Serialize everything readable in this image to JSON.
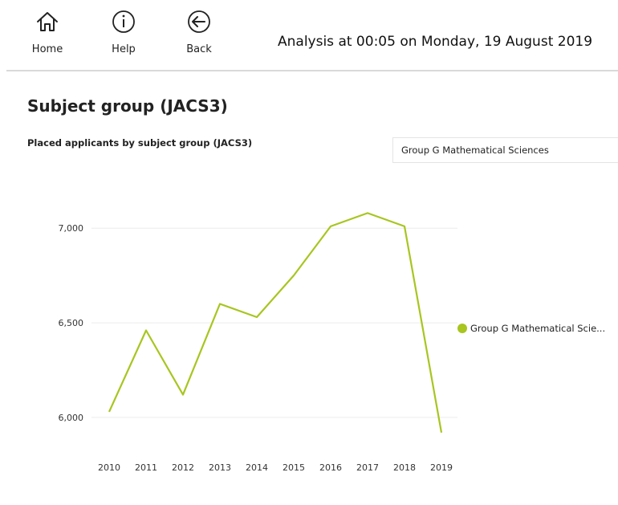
{
  "nav": {
    "home_label": "Home",
    "help_label": "Help",
    "back_label": "Back"
  },
  "analysis_text": "Analysis at 00:05 on Monday, 19 August 2019",
  "page_title": "Subject group (JACS3)",
  "dropdown": {
    "selected": "Group G Mathematical Sciences"
  },
  "legend": {
    "label": "Group G Mathematical Scie..."
  },
  "colors": {
    "series": "#a8c520",
    "grid": "#ececec",
    "divider": "#d9d9d9"
  },
  "chart_data": {
    "type": "line",
    "title": "Placed applicants by subject group (JACS3)",
    "categories": [
      "2010",
      "2011",
      "2012",
      "2013",
      "2014",
      "2015",
      "2016",
      "2017",
      "2018",
      "2019"
    ],
    "series": [
      {
        "name": "Group G Mathematical Sciences",
        "values": [
          6030,
          6460,
          6120,
          6600,
          6530,
          6750,
          7010,
          7080,
          7010,
          5920
        ]
      }
    ],
    "yticks": [
      "6,000",
      "6,500",
      "7,000"
    ],
    "ytick_values": [
      6000,
      6500,
      7000
    ],
    "ylim": [
      5830,
      7230
    ],
    "grid": true,
    "legend_position": "right"
  }
}
